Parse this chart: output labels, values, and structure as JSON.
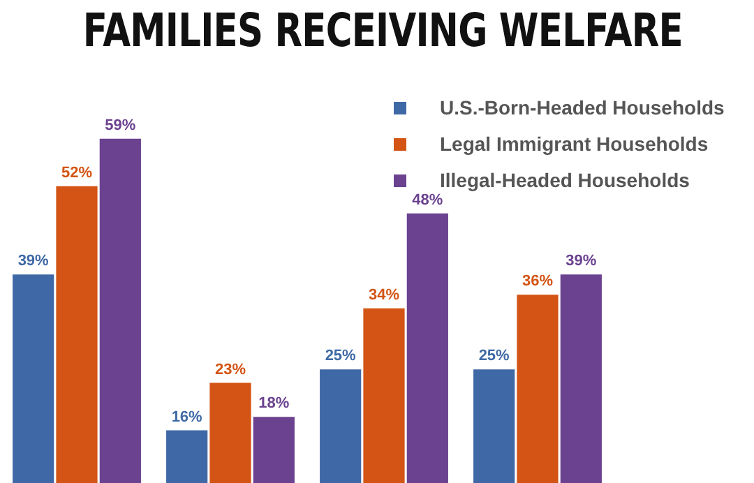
{
  "chart_data": {
    "type": "bar",
    "title": "FAMILIES RECEIVING WELFARE",
    "categories": [
      null,
      null,
      null,
      null
    ],
    "series": [
      {
        "name": "U.S.-Born-Headed Households",
        "color": "#3f69a6",
        "values": [
          39,
          16,
          25,
          25
        ],
        "value_labels": [
          "39%",
          "16%",
          "25%",
          "25%"
        ]
      },
      {
        "name": "Legal Immigrant Households",
        "color": "#d35414",
        "values": [
          52,
          23,
          34,
          36
        ],
        "value_labels": [
          "52%",
          "23%",
          "34%",
          "36%"
        ]
      },
      {
        "name": "Illegal-Headed Households",
        "color": "#6b428f",
        "values": [
          59,
          18,
          48,
          39
        ],
        "value_labels": [
          "59%",
          "18%",
          "48%",
          "39%"
        ]
      }
    ],
    "legend": "top right",
    "grid": false
  }
}
